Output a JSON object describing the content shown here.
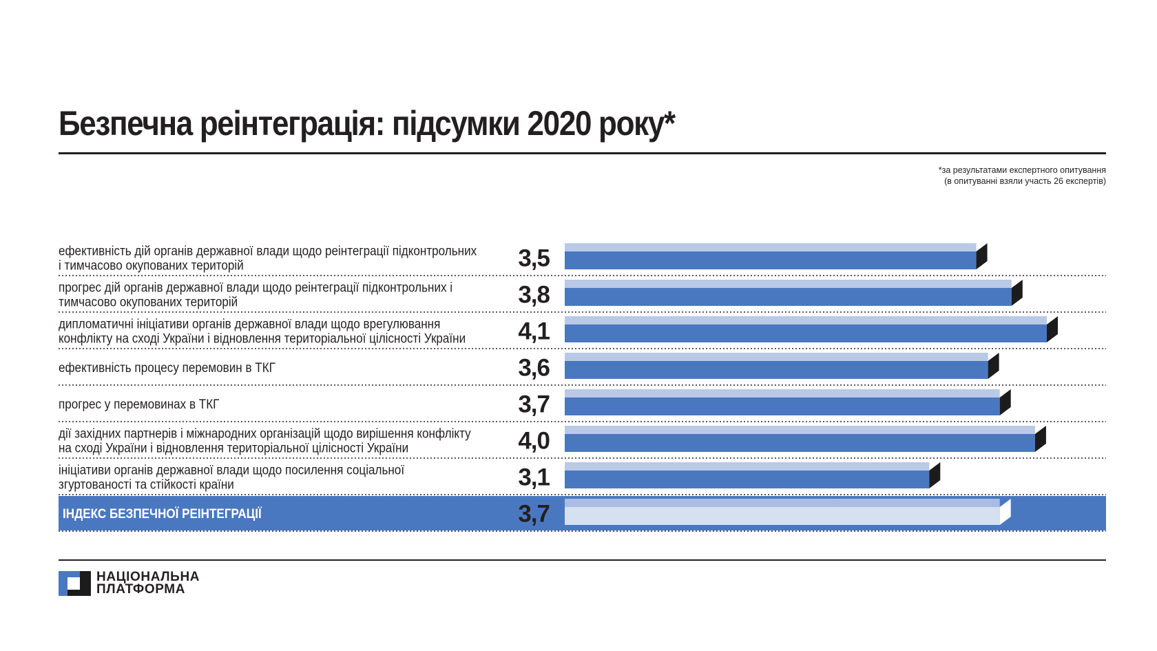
{
  "title": "Безпечна реінтеграція: підсумки 2020 року*",
  "note": {
    "line1": "*за результатами експертного опитування",
    "line2": "(в опитуванні взяли участь 26 експертів)"
  },
  "logo": {
    "line1": "НАЦІОНАЛЬНА",
    "line2": "ПЛАТФОРМА"
  },
  "colors": {
    "bar_dark": "#4a78c0",
    "bar_light": "#b9c9e6",
    "bar_side": "#1c1c1c",
    "index_row_bg": "#4a78c0",
    "index_bar_light": "#a9bde2",
    "index_bar_main": "#d5e0f1",
    "text": "#231f20"
  },
  "chart_data": {
    "type": "bar",
    "orientation": "horizontal",
    "categories": [
      "ефективність дій органів державної влади щодо реінтеграції підконтрольних\nі тимчасово окупованих територій",
      "прогрес дій органів державної влади щодо реінтеграції підконтрольних і\nтимчасово окупованих територій",
      "дипломатичні ініціативи органів державної влади щодо врегулювання\nконфлікту на сході України і відновлення територіальної цілісності України",
      "ефективність процесу перемовин в ТКГ",
      "прогрес у перемовинах в ТКГ",
      "дії західних партнерів і міжнародних організацій щодо вирішення конфлікту\nна сході України і відновлення територіальної цілісності України",
      "ініціативи органів державної влади щодо посилення соціальної\nзгуртованості та стійкості країни",
      "ІНДЕКС БЕЗПЕЧНОЇ РЕІНТЕГРАЦІЇ"
    ],
    "values": [
      3.5,
      3.8,
      4.1,
      3.6,
      3.7,
      4.0,
      3.1,
      3.7
    ],
    "value_labels": [
      "3,5",
      "3,8",
      "4,1",
      "3,6",
      "3,7",
      "4,0",
      "3,1",
      "3,7"
    ],
    "highlighted_index": 7,
    "xlim": [
      0,
      4.1
    ]
  }
}
